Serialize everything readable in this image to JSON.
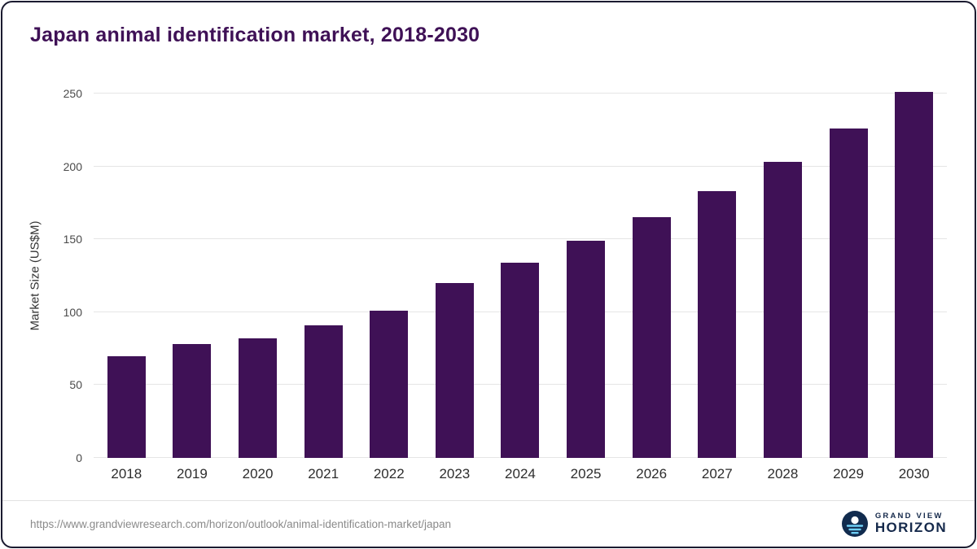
{
  "chart_data": {
    "type": "bar",
    "title": "Japan animal identification market, 2018-2030",
    "ylabel": "Market Size (US$M)",
    "xlabel": "",
    "categories": [
      "2018",
      "2019",
      "2020",
      "2021",
      "2022",
      "2023",
      "2024",
      "2025",
      "2026",
      "2027",
      "2028",
      "2029",
      "2030"
    ],
    "values": [
      70,
      78,
      82,
      91,
      101,
      120,
      134,
      149,
      165,
      183,
      203,
      226,
      251
    ],
    "ylim": [
      0,
      250
    ],
    "yticks": [
      0,
      50,
      100,
      150,
      200,
      250
    ],
    "grid": true,
    "legend": false
  },
  "colors": {
    "bar": "#3f1156",
    "title": "#3f1156",
    "gridline": "#e5e5e5",
    "axis_text": "#4a4a4a",
    "logo_navy": "#112b4e",
    "logo_blue": "#6fd0f6"
  },
  "footer": {
    "source_url": "https://www.grandviewresearch.com/horizon/outlook/animal-identification-market/japan",
    "logo_top": "GRAND VIEW",
    "logo_bottom": "HORIZON"
  }
}
